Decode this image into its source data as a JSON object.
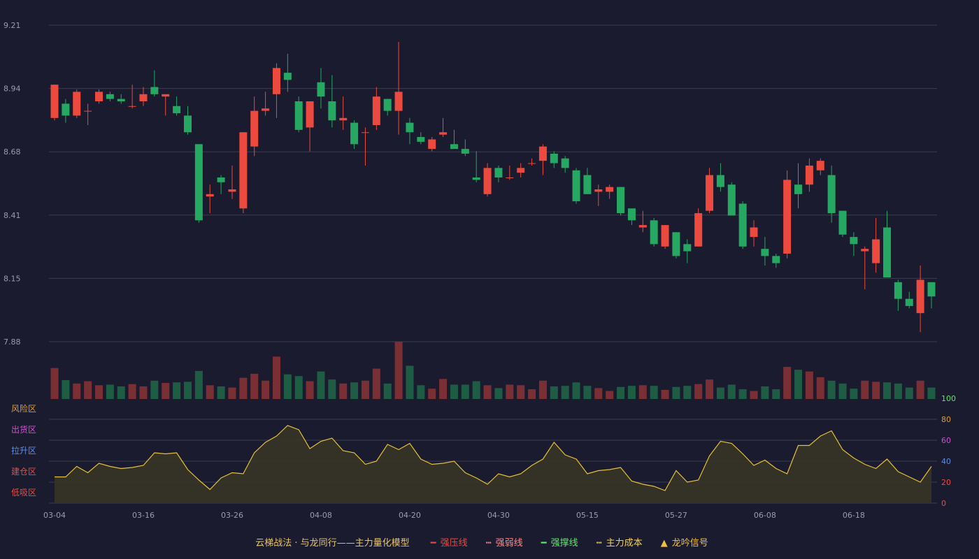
{
  "colors": {
    "up": "#ec4a3e",
    "down": "#26a862",
    "up_volume": "#7a2f35",
    "down_volume": "#1f5c44",
    "grid": "#3a3c52",
    "line": "#e6c233",
    "area": "#3a3526"
  },
  "legend": {
    "title": "云梯战法 · 与龙同行——主力量化模型",
    "items": [
      {
        "label": "强压线",
        "color": "#ec4a3e",
        "mark": "solid"
      },
      {
        "label": "强弱线",
        "color": "#ff8a8a",
        "mark": "dashed"
      },
      {
        "label": "强撑线",
        "color": "#5ee86a",
        "mark": "solid"
      },
      {
        "label": "主力成本",
        "color": "#f0d060",
        "mark": "dashed"
      },
      {
        "label": "龙吟信号",
        "color": "#f0c040",
        "mark": "triangle"
      }
    ]
  },
  "chart_data": [
    {
      "type": "candlestick",
      "price_ticks": [
        "9.21",
        "8.94",
        "8.68",
        "8.41",
        "8.15",
        "7.88"
      ],
      "ylim": [
        7.88,
        9.21
      ],
      "x_tick_labels": [
        {
          "index": 0,
          "label": "03-04"
        },
        {
          "index": 8,
          "label": "03-16"
        },
        {
          "index": 16,
          "label": "03-26"
        },
        {
          "index": 24,
          "label": "04-08"
        },
        {
          "index": 32,
          "label": "04-20"
        },
        {
          "index": 40,
          "label": "04-30"
        },
        {
          "index": 48,
          "label": "05-15"
        },
        {
          "index": 56,
          "label": "05-27"
        },
        {
          "index": 64,
          "label": "06-08"
        },
        {
          "index": 72,
          "label": "06-18"
        }
      ],
      "candles": [
        [
          8.82,
          8.96,
          8.81,
          8.96
        ],
        [
          8.88,
          8.9,
          8.8,
          8.83
        ],
        [
          8.83,
          8.94,
          8.82,
          8.93
        ],
        [
          8.85,
          8.88,
          8.79,
          8.85
        ],
        [
          8.89,
          8.94,
          8.88,
          8.93
        ],
        [
          8.92,
          8.93,
          8.89,
          8.9
        ],
        [
          8.9,
          8.92,
          8.88,
          8.89
        ],
        [
          8.87,
          8.96,
          8.86,
          8.87
        ],
        [
          8.89,
          8.95,
          8.87,
          8.92
        ],
        [
          8.95,
          9.02,
          8.91,
          8.92
        ],
        [
          8.91,
          8.92,
          8.83,
          8.92
        ],
        [
          8.87,
          8.91,
          8.83,
          8.84
        ],
        [
          8.83,
          8.87,
          8.75,
          8.76
        ],
        [
          8.71,
          8.71,
          8.38,
          8.39
        ],
        [
          8.49,
          8.54,
          8.42,
          8.5
        ],
        [
          8.57,
          8.58,
          8.5,
          8.55
        ],
        [
          8.51,
          8.62,
          8.48,
          8.52
        ],
        [
          8.44,
          8.76,
          8.42,
          8.76
        ],
        [
          8.7,
          8.91,
          8.66,
          8.85
        ],
        [
          8.85,
          8.93,
          8.83,
          8.86
        ],
        [
          8.92,
          9.05,
          8.82,
          9.03
        ],
        [
          9.01,
          9.09,
          8.93,
          8.98
        ],
        [
          8.89,
          8.91,
          8.76,
          8.77
        ],
        [
          8.78,
          8.89,
          8.68,
          8.89
        ],
        [
          8.97,
          9.03,
          8.86,
          8.91
        ],
        [
          8.89,
          9.0,
          8.78,
          8.81
        ],
        [
          8.81,
          8.91,
          8.77,
          8.82
        ],
        [
          8.8,
          8.81,
          8.69,
          8.71
        ],
        [
          8.76,
          8.78,
          8.62,
          8.76
        ],
        [
          8.79,
          8.95,
          8.77,
          8.91
        ],
        [
          8.9,
          8.9,
          8.83,
          8.85
        ],
        [
          8.85,
          9.14,
          8.75,
          8.93
        ],
        [
          8.8,
          8.82,
          8.71,
          8.76
        ],
        [
          8.74,
          8.76,
          8.71,
          8.72
        ],
        [
          8.69,
          8.74,
          8.68,
          8.73
        ],
        [
          8.75,
          8.82,
          8.74,
          8.76
        ],
        [
          8.71,
          8.77,
          8.69,
          8.69
        ],
        [
          8.69,
          8.73,
          8.66,
          8.67
        ],
        [
          8.57,
          8.68,
          8.55,
          8.56
        ],
        [
          8.5,
          8.63,
          8.49,
          8.61
        ],
        [
          8.61,
          8.62,
          8.55,
          8.57
        ],
        [
          8.57,
          8.62,
          8.56,
          8.57
        ],
        [
          8.59,
          8.63,
          8.57,
          8.61
        ],
        [
          8.63,
          8.65,
          8.62,
          8.63
        ],
        [
          8.64,
          8.71,
          8.58,
          8.7
        ],
        [
          8.67,
          8.68,
          8.61,
          8.63
        ],
        [
          8.65,
          8.66,
          8.59,
          8.61
        ],
        [
          8.6,
          8.61,
          8.46,
          8.47
        ],
        [
          8.58,
          8.61,
          8.5,
          8.5
        ],
        [
          8.51,
          8.54,
          8.45,
          8.52
        ],
        [
          8.51,
          8.54,
          8.48,
          8.53
        ],
        [
          8.53,
          8.53,
          8.41,
          8.42
        ],
        [
          8.44,
          8.44,
          8.37,
          8.39
        ],
        [
          8.36,
          8.43,
          8.34,
          8.37
        ],
        [
          8.39,
          8.4,
          8.28,
          8.29
        ],
        [
          8.28,
          8.37,
          8.27,
          8.37
        ],
        [
          8.34,
          8.34,
          8.23,
          8.24
        ],
        [
          8.29,
          8.31,
          8.21,
          8.26
        ],
        [
          8.28,
          8.44,
          8.28,
          8.42
        ],
        [
          8.43,
          8.61,
          8.42,
          8.58
        ],
        [
          8.58,
          8.63,
          8.51,
          8.53
        ],
        [
          8.54,
          8.55,
          8.41,
          8.41
        ],
        [
          8.46,
          8.47,
          8.27,
          8.28
        ],
        [
          8.32,
          8.39,
          8.28,
          8.36
        ],
        [
          8.27,
          8.32,
          8.2,
          8.24
        ],
        [
          8.24,
          8.25,
          8.19,
          8.21
        ],
        [
          8.25,
          8.6,
          8.23,
          8.56
        ],
        [
          8.54,
          8.63,
          8.44,
          8.5
        ],
        [
          8.54,
          8.65,
          8.51,
          8.62
        ],
        [
          8.6,
          8.65,
          8.58,
          8.64
        ],
        [
          8.58,
          8.62,
          8.38,
          8.42
        ],
        [
          8.43,
          8.43,
          8.32,
          8.33
        ],
        [
          8.32,
          8.34,
          8.24,
          8.29
        ],
        [
          8.26,
          8.28,
          8.1,
          8.27
        ],
        [
          8.21,
          8.4,
          8.17,
          8.31
        ],
        [
          8.36,
          8.43,
          8.15,
          8.15
        ],
        [
          8.13,
          8.14,
          8.01,
          8.06
        ],
        [
          8.06,
          8.09,
          8.02,
          8.03
        ],
        [
          8.0,
          8.2,
          7.92,
          8.14
        ],
        [
          8.13,
          8.13,
          8.02,
          8.07
        ]
      ],
      "volumes": [
        0.54,
        0.33,
        0.27,
        0.31,
        0.24,
        0.25,
        0.22,
        0.26,
        0.22,
        0.32,
        0.28,
        0.29,
        0.3,
        0.49,
        0.24,
        0.22,
        0.2,
        0.37,
        0.44,
        0.32,
        0.74,
        0.43,
        0.4,
        0.31,
        0.48,
        0.34,
        0.27,
        0.29,
        0.32,
        0.53,
        0.27,
        1.0,
        0.58,
        0.24,
        0.18,
        0.35,
        0.25,
        0.25,
        0.31,
        0.24,
        0.19,
        0.25,
        0.24,
        0.17,
        0.32,
        0.22,
        0.23,
        0.29,
        0.23,
        0.19,
        0.14,
        0.21,
        0.23,
        0.24,
        0.23,
        0.16,
        0.21,
        0.23,
        0.26,
        0.34,
        0.2,
        0.25,
        0.17,
        0.14,
        0.22,
        0.17,
        0.56,
        0.51,
        0.48,
        0.38,
        0.32,
        0.27,
        0.18,
        0.32,
        0.3,
        0.29,
        0.27,
        0.2,
        0.32,
        0.2
      ]
    },
    {
      "type": "area",
      "yticks": [
        "100",
        "80",
        "60",
        "40",
        "20",
        "0"
      ],
      "ytick_colors": [
        "#5ee86a",
        "#e09a30",
        "#d050d0",
        "#5a8ee8",
        "#ec4a3e",
        "#ec4a3e"
      ],
      "zone_labels": [
        "风险区",
        "出货区",
        "拉升区",
        "建仓区",
        "低吸区"
      ],
      "zone_colors": [
        "#e09a30",
        "#d050d0",
        "#5a8ee8",
        "#ec4a3e",
        "#ec4a3e"
      ],
      "ylim": [
        0,
        100
      ],
      "values": [
        25,
        25,
        35,
        29,
        38,
        35,
        33,
        34,
        36,
        48,
        47,
        48,
        32,
        22,
        13,
        24,
        29,
        28,
        48,
        58,
        64,
        74,
        70,
        52,
        59,
        62,
        50,
        48,
        37,
        40,
        56,
        51,
        57,
        42,
        37,
        38,
        40,
        29,
        24,
        18,
        28,
        25,
        28,
        36,
        42,
        58,
        46,
        42,
        28,
        31,
        32,
        34,
        21,
        18,
        16,
        12,
        31,
        20,
        22,
        45,
        59,
        57,
        47,
        36,
        41,
        33,
        28,
        55,
        55,
        64,
        69,
        51,
        43,
        37,
        33,
        42,
        30,
        25,
        20,
        35
      ]
    }
  ]
}
